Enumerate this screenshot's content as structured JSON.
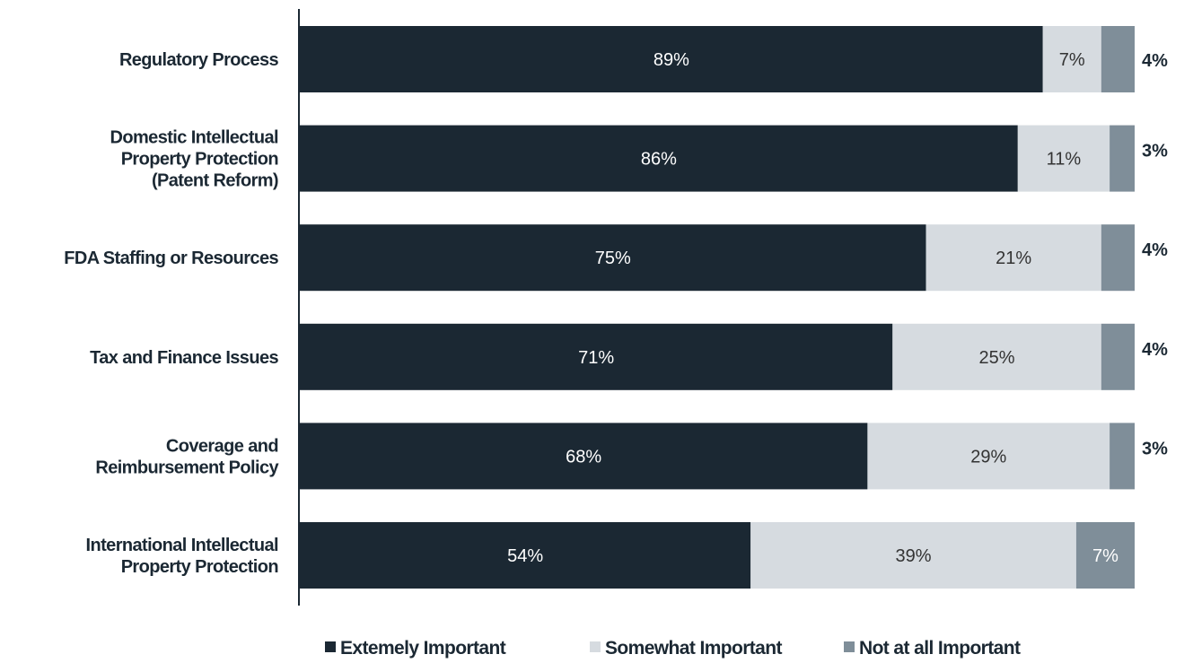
{
  "chart_data": {
    "type": "bar",
    "orientation": "horizontal",
    "stacked": true,
    "categories": [
      [
        "Regulatory Process"
      ],
      [
        "Domestic Intellectual",
        "Property Protection",
        "(Patent Reform)"
      ],
      [
        "FDA Staffing or Resources"
      ],
      [
        "Tax and Finance Issues"
      ],
      [
        "Coverage and",
        "Reimbursement Policy"
      ],
      [
        "International Intellectual",
        "Property Protection"
      ]
    ],
    "series": [
      {
        "name": "Extemely Important",
        "values": [
          89,
          86,
          75,
          71,
          68,
          54
        ],
        "color": "#1b2833",
        "label_color": "#ffffff"
      },
      {
        "name": "Somewhat Important",
        "values": [
          7,
          11,
          21,
          25,
          29,
          39
        ],
        "color": "#d6dbe0",
        "label_color": "#333333"
      },
      {
        "name": "Not at all Important",
        "values": [
          4,
          3,
          4,
          4,
          3,
          7
        ],
        "color": "#7f8e99",
        "label_color": "#ffffff"
      }
    ],
    "label_suffix": "%",
    "outside_label_series": 2,
    "outside_label_rows": [
      0,
      1,
      2,
      3,
      4
    ],
    "xlim": [
      0,
      100
    ],
    "grid": false,
    "legend_position": "bottom"
  }
}
